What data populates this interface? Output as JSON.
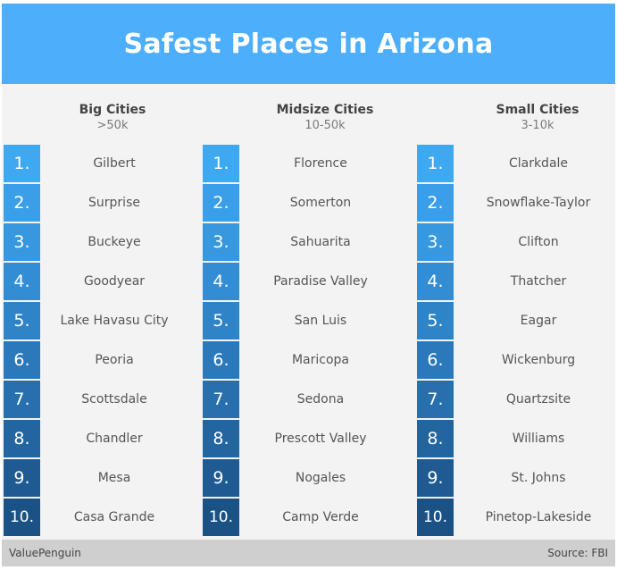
{
  "title": "Safest Places in Arizona",
  "columns": [
    {
      "name": "Big Cities",
      "range": ">50k",
      "cities": [
        "Gilbert",
        "Surprise",
        "Buckeye",
        "Goodyear",
        "Lake Havasu City",
        "Peoria",
        "Scottsdale",
        "Chandler",
        "Mesa",
        "Casa Grande"
      ]
    },
    {
      "name": "Midsize Cities",
      "range": "10-50k",
      "cities": [
        "Florence",
        "Somerton",
        "Sahuarita",
        "Paradise Valley",
        "San Luis",
        "Maricopa",
        "Sedona",
        "Prescott Valley",
        "Nogales",
        "Camp Verde"
      ]
    },
    {
      "name": "Small Cities",
      "range": "3-10k",
      "cities": [
        "Clarkdale",
        "Snowflake-Taylor",
        "Clifton",
        "Thatcher",
        "Eagar",
        "Wickenburg",
        "Quartzsite",
        "Williams",
        "St. Johns",
        "Pinetop-Lakeside"
      ]
    }
  ],
  "ranks": [
    "1.",
    "2.",
    "3.",
    "4.",
    "5.",
    "6.",
    "7.",
    "8.",
    "9.",
    "10."
  ],
  "rank_colors": [
    "#3ea8f1",
    "#3a9fe8",
    "#3797df",
    "#338dd4",
    "#2f84c8",
    "#2b79ba",
    "#276fad",
    "#23659f",
    "#1f5b92",
    "#1b5286"
  ],
  "footer": {
    "brand": "ValuePenguin",
    "source": "Source: FBI"
  }
}
